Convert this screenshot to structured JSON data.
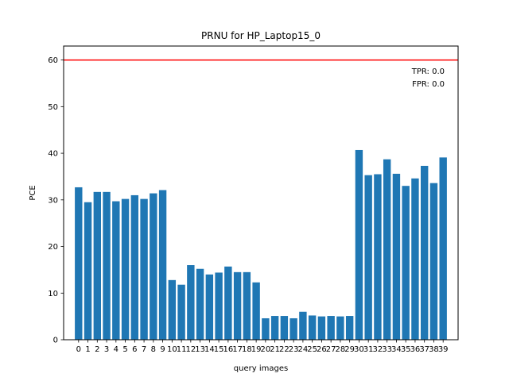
{
  "chart_data": {
    "type": "bar",
    "title": "PRNU for HP_Laptop15_0",
    "xlabel": "query images",
    "ylabel": "PCE",
    "categories": [
      "0",
      "1",
      "2",
      "3",
      "4",
      "5",
      "6",
      "7",
      "8",
      "9",
      "10",
      "11",
      "12",
      "13",
      "14",
      "15",
      "16",
      "17",
      "18",
      "19",
      "20",
      "21",
      "22",
      "23",
      "24",
      "25",
      "26",
      "27",
      "28",
      "29",
      "30",
      "31",
      "32",
      "33",
      "34",
      "35",
      "36",
      "37",
      "38",
      "39"
    ],
    "values": [
      32.7,
      29.5,
      31.7,
      31.7,
      29.7,
      30.2,
      31.0,
      30.2,
      31.4,
      32.1,
      12.8,
      11.8,
      16.0,
      15.2,
      14.0,
      14.4,
      15.7,
      14.5,
      14.5,
      12.3,
      4.6,
      5.1,
      5.1,
      4.6,
      6.0,
      5.2,
      5.0,
      5.1,
      5.0,
      5.1,
      40.7,
      35.3,
      35.5,
      38.7,
      35.6,
      33.0,
      34.6,
      37.3,
      33.6,
      39.1
    ],
    "yticks": [
      0,
      10,
      20,
      30,
      40,
      50,
      60
    ],
    "ylim": [
      0,
      63
    ],
    "threshold": 60,
    "bar_color": "#1f77b4",
    "threshold_color": "#ff0000",
    "annotations": [
      "TPR: 0.0",
      "FPR: 0.0"
    ]
  }
}
